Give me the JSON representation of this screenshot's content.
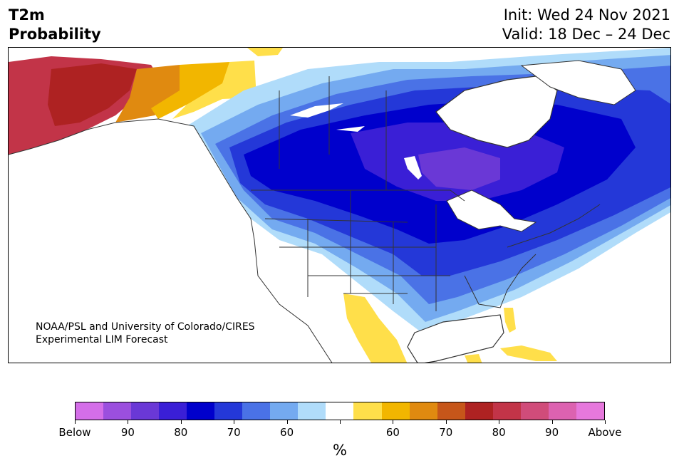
{
  "header": {
    "title_line1": "T2m",
    "title_line2": "Probability",
    "init": "Init: Wed 24 Nov 2021",
    "valid": "Valid: 18 Dec – 24 Dec"
  },
  "map": {
    "credit_line1": "NOAA/PSL and University of Colorado/CIRES",
    "credit_line2": "Experimental LIM Forecast"
  },
  "colorbar": {
    "colors": [
      "#d46ee8",
      "#9b4fde",
      "#6a38d6",
      "#3a1fd6",
      "#0000cc",
      "#2438d8",
      "#4a72e6",
      "#74aaf0",
      "#b0dcfa",
      "#ffffff",
      "#ffdf4a",
      "#f2b600",
      "#e08a10",
      "#c6561a",
      "#ae2222",
      "#c23448",
      "#d04c7a",
      "#dc62b0",
      "#e678dc"
    ],
    "tick_labels": [
      "Below",
      "90",
      "80",
      "70",
      "60",
      "",
      "60",
      "70",
      "80",
      "90",
      "Above"
    ],
    "unit": "%"
  },
  "palette": {
    "land": "#ffffff",
    "ocean": "#ffffff",
    "border": "#333333"
  }
}
